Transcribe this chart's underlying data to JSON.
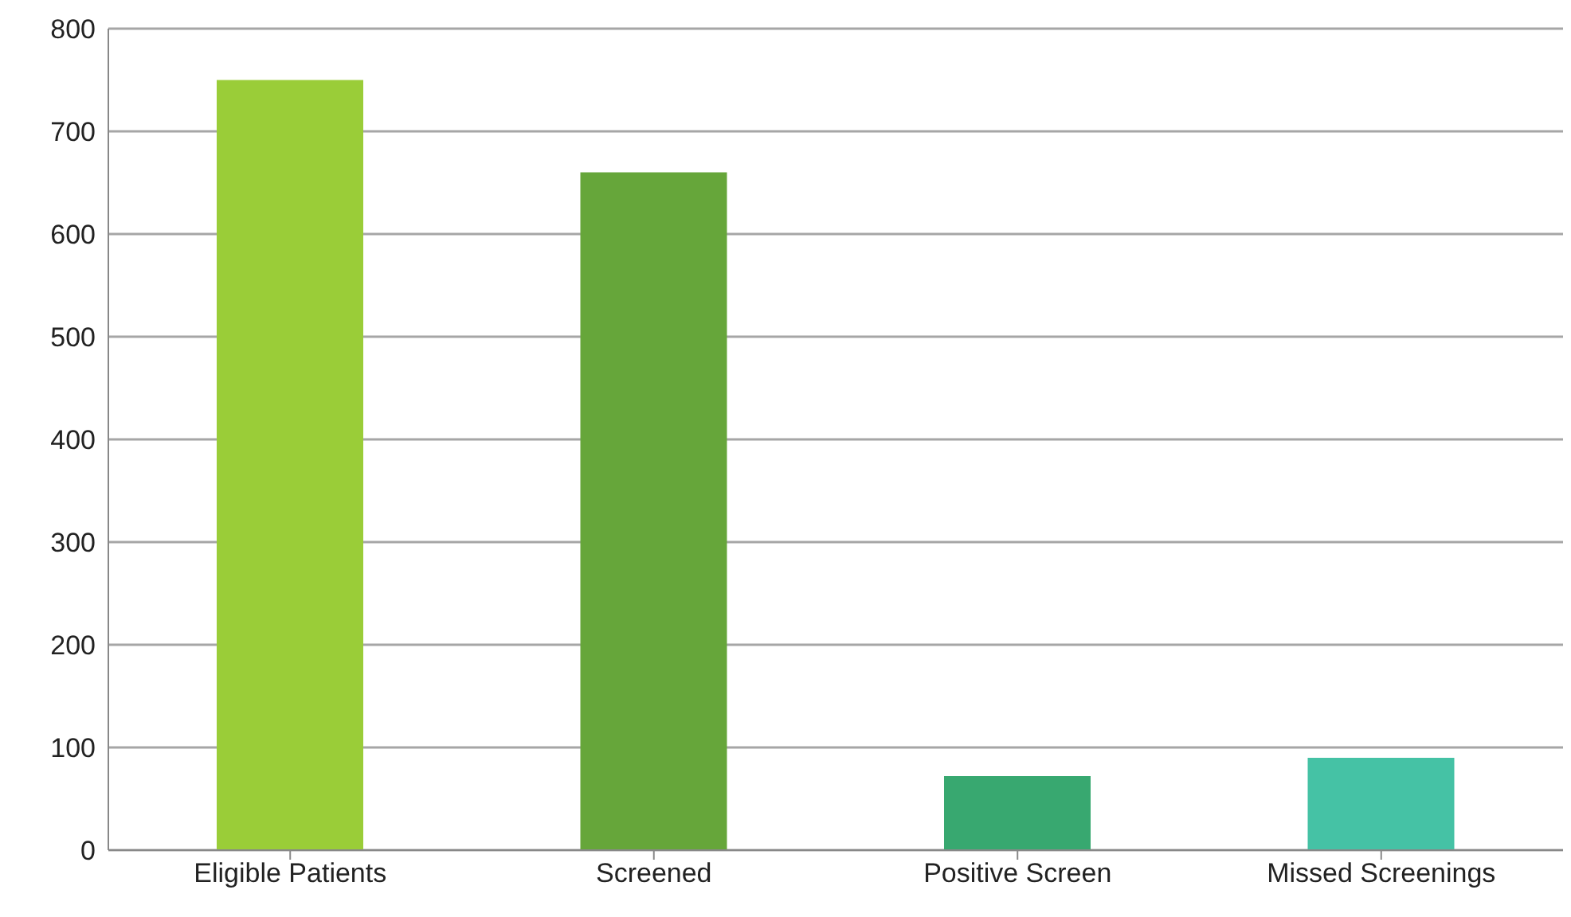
{
  "chart_data": {
    "type": "bar",
    "categories": [
      "Eligible Patients",
      "Screened",
      "Positive Screen",
      "Missed Screenings"
    ],
    "values": [
      750,
      660,
      72,
      90
    ],
    "colors": [
      "#9acd38",
      "#66a63a",
      "#38a870",
      "#45c2a5"
    ],
    "ylim": [
      0,
      800
    ],
    "yticks": [
      0,
      100,
      200,
      300,
      400,
      500,
      600,
      700,
      800
    ],
    "grid": "y"
  }
}
